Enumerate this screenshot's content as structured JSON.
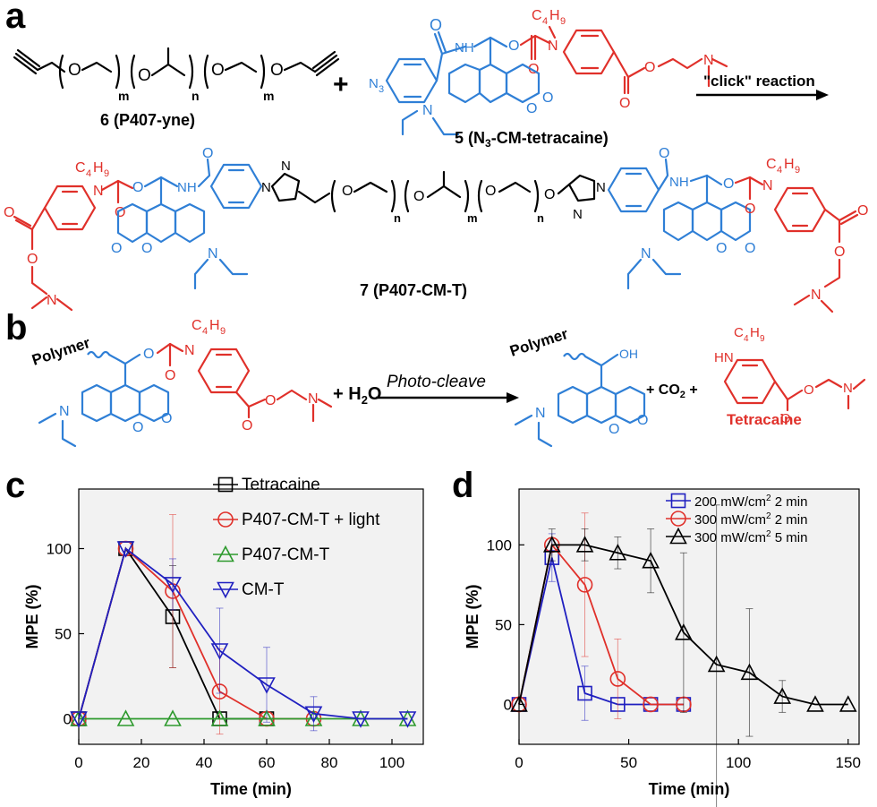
{
  "panels": {
    "a": {
      "letter": "a",
      "compound6_label": "6 (P407-yne)",
      "compound5_label": "5 (N",
      "compound5_sub": "3",
      "compound5_rest": "-CM-tetracaine)",
      "compound7_label": "7 (P407-CM-T)",
      "arrow_label": "\"click\" reaction",
      "plus": "+",
      "idx_m": "m",
      "idx_n": "n",
      "atom_O": "O",
      "atom_N": "N",
      "atom_NH": "NH",
      "atom_N3": "N",
      "sub_3": "3",
      "c4h9": "C",
      "c4h9_h": "H",
      "c4h9_4": "4",
      "c4h9_9": "9"
    },
    "b": {
      "letter": "b",
      "polymer": "Polymer",
      "plus_h2o": "+ H",
      "h2o_sub": "2",
      "h2o_o": "O",
      "arrow_label": "Photo-cleave",
      "co2": "+ CO",
      "co2_sub": "2",
      "co2_plus": " +",
      "product_label": "Tetracaine",
      "oh": "OH",
      "hn": "HN"
    },
    "c": {
      "letter": "c"
    },
    "d": {
      "letter": "d"
    }
  },
  "chart_data": [
    {
      "type": "line",
      "panel": "c",
      "xlabel": "Time (min)",
      "ylabel": "MPE (%)",
      "xlim": [
        0,
        110
      ],
      "ylim": [
        -15,
        135
      ],
      "xticks": [
        0,
        20,
        40,
        60,
        80,
        100
      ],
      "yticks": [
        0,
        50,
        100
      ],
      "legend_position": "top-right",
      "series": [
        {
          "name": "Tetracaine",
          "color": "#000000",
          "marker": "square",
          "x": [
            0,
            15,
            30,
            45,
            60
          ],
          "y": [
            0,
            100,
            60,
            0,
            0
          ],
          "err": [
            0,
            0,
            30,
            0,
            0
          ]
        },
        {
          "name": "P407-CM-T + light",
          "color": "#e0302a",
          "marker": "circle",
          "x": [
            0,
            15,
            30,
            45,
            60,
            75
          ],
          "y": [
            0,
            100,
            75,
            16,
            0,
            0
          ],
          "err": [
            0,
            0,
            45,
            25,
            0,
            0
          ]
        },
        {
          "name": "P407-CM-T",
          "color": "#2e9a2e",
          "marker": "triangle-up",
          "x": [
            0,
            15,
            30,
            45,
            60,
            75,
            90,
            105
          ],
          "y": [
            0,
            0,
            0,
            0,
            0,
            0,
            0,
            0
          ],
          "err": [
            0,
            0,
            0,
            0,
            0,
            0,
            0,
            0
          ]
        },
        {
          "name": "CM-T",
          "color": "#2020c0",
          "marker": "triangle-down",
          "x": [
            0,
            15,
            30,
            45,
            60,
            75,
            90,
            105
          ],
          "y": [
            0,
            100,
            79,
            40,
            20,
            3,
            0,
            0
          ],
          "err": [
            0,
            0,
            15,
            25,
            22,
            10,
            0,
            0
          ]
        }
      ]
    },
    {
      "type": "line",
      "panel": "d",
      "xlabel": "Time (min)",
      "ylabel": "MPE (%)",
      "xlim": [
        0,
        155
      ],
      "ylim": [
        -25,
        135
      ],
      "xticks": [
        0,
        50,
        100,
        150
      ],
      "yticks": [
        0,
        50,
        100
      ],
      "legend_position": "top-right",
      "series": [
        {
          "name": "200 mW/cm",
          "name_sup": "2",
          "name_rest": " 2 min",
          "color": "#2020c0",
          "marker": "square",
          "x": [
            0,
            15,
            30,
            45,
            60,
            75
          ],
          "y": [
            0,
            92,
            7,
            0,
            0,
            0
          ],
          "err": [
            0,
            15,
            17,
            0,
            0,
            0
          ]
        },
        {
          "name": "300 mW/cm",
          "name_sup": "2",
          "name_rest": " 2 min",
          "color": "#e0302a",
          "marker": "circle",
          "x": [
            0,
            15,
            30,
            45,
            60,
            75
          ],
          "y": [
            0,
            100,
            75,
            16,
            0,
            0
          ],
          "err": [
            0,
            0,
            45,
            25,
            0,
            0
          ]
        },
        {
          "name": "300 mW/cm",
          "name_sup": "2",
          "name_rest": " 5 min",
          "color": "#000000",
          "marker": "triangle-up",
          "x": [
            0,
            15,
            30,
            45,
            60,
            75,
            90,
            105,
            120,
            135,
            150
          ],
          "y": [
            0,
            100,
            100,
            95,
            90,
            45,
            25,
            20,
            5,
            0,
            0
          ],
          "err": [
            0,
            10,
            10,
            10,
            20,
            50,
            100,
            40,
            10,
            0,
            0
          ]
        }
      ]
    }
  ]
}
